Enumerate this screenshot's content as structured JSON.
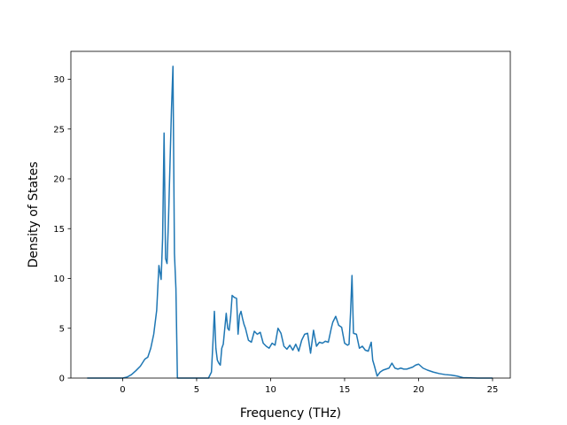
{
  "chart_data": {
    "type": "line",
    "title": "",
    "xlabel": "Frequency (THz)",
    "ylabel": "Density of States",
    "xlim": [
      -3.5,
      26.2
    ],
    "ylim": [
      0,
      32.8
    ],
    "xticks": [
      0,
      5,
      10,
      15,
      20,
      25
    ],
    "yticks": [
      0,
      5,
      10,
      15,
      20,
      25,
      30
    ],
    "grid": false,
    "legend": "none",
    "series_color": "#1f77b4",
    "series": [
      {
        "x": [
          -2.4,
          -1.5,
          -0.8,
          0.0,
          0.3,
          0.6,
          0.9,
          1.2,
          1.5,
          1.7,
          1.9,
          2.1,
          2.3,
          2.45,
          2.6,
          2.7,
          2.8,
          2.9,
          3.0,
          3.1,
          3.2,
          3.3,
          3.4,
          3.5,
          3.6,
          3.7,
          3.8,
          3.9,
          4.0,
          4.1,
          5.0,
          5.8,
          6.0,
          6.1,
          6.2,
          6.3,
          6.4,
          6.5,
          6.6,
          6.7,
          6.8,
          7.0,
          7.1,
          7.2,
          7.3,
          7.4,
          7.55,
          7.7,
          7.8,
          7.9,
          8.0,
          8.1,
          8.2,
          8.3,
          8.5,
          8.7,
          8.9,
          9.1,
          9.3,
          9.5,
          9.7,
          9.9,
          10.1,
          10.3,
          10.5,
          10.7,
          10.9,
          11.1,
          11.3,
          11.5,
          11.7,
          11.9,
          12.1,
          12.3,
          12.5,
          12.7,
          12.9,
          13.1,
          13.3,
          13.5,
          13.7,
          13.9,
          14.1,
          14.2,
          14.4,
          14.6,
          14.8,
          15.0,
          15.2,
          15.3,
          15.4,
          15.5,
          15.6,
          15.8,
          16.0,
          16.2,
          16.4,
          16.6,
          16.8,
          16.9,
          17.0,
          17.2,
          17.4,
          17.6,
          17.8,
          18.0,
          18.2,
          18.4,
          18.6,
          18.8,
          19.0,
          19.2,
          19.4,
          19.6,
          19.8,
          20.0,
          20.3,
          20.6,
          21.0,
          21.4,
          21.8,
          22.2,
          22.6,
          23.0,
          24.0,
          25.0
        ],
        "y": [
          0.0,
          0.0,
          0.0,
          0.0,
          0.1,
          0.35,
          0.75,
          1.2,
          1.9,
          2.1,
          3.0,
          4.4,
          6.8,
          11.3,
          9.9,
          14.0,
          24.6,
          12.0,
          11.5,
          16.0,
          21.5,
          27.0,
          31.3,
          12.5,
          9.0,
          0.0,
          0.0,
          0.0,
          0.0,
          0.0,
          0.0,
          0.0,
          0.6,
          3.5,
          6.7,
          3.0,
          1.8,
          1.5,
          1.3,
          3.0,
          3.4,
          6.5,
          5.0,
          4.8,
          6.2,
          8.3,
          8.1,
          8.0,
          4.4,
          6.3,
          6.7,
          6.0,
          5.4,
          5.0,
          3.8,
          3.6,
          4.7,
          4.4,
          4.6,
          3.5,
          3.2,
          3.0,
          3.5,
          3.3,
          5.0,
          4.5,
          3.2,
          2.9,
          3.3,
          2.8,
          3.4,
          2.7,
          3.8,
          4.4,
          4.5,
          2.5,
          4.8,
          3.2,
          3.6,
          3.5,
          3.7,
          3.6,
          5.0,
          5.6,
          6.2,
          5.3,
          5.1,
          3.5,
          3.3,
          3.4,
          6.5,
          10.3,
          4.5,
          4.4,
          3.0,
          3.2,
          2.8,
          2.7,
          3.6,
          1.8,
          1.3,
          0.2,
          0.6,
          0.8,
          0.9,
          1.0,
          1.5,
          1.0,
          0.9,
          1.0,
          0.9,
          0.9,
          1.0,
          1.1,
          1.3,
          1.4,
          1.0,
          0.8,
          0.6,
          0.45,
          0.35,
          0.3,
          0.2,
          0.05,
          0.0,
          0.0
        ]
      }
    ]
  }
}
